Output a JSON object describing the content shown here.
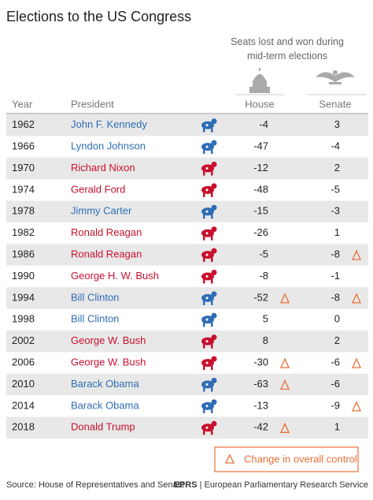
{
  "title": "Elections to the US Congress",
  "subtitle": "Seats lost and won during mid-term elections",
  "columns": {
    "year": "Year",
    "president": "President",
    "house": "House",
    "senate": "Senate"
  },
  "rows": [
    {
      "year": "1962",
      "president": "John F. Kennedy",
      "color": "#2f6db5",
      "house": -4,
      "senate": 3,
      "house_change": false,
      "senate_change": false
    },
    {
      "year": "1966",
      "president": "Lyndon Johnson",
      "color": "#2f6db5",
      "house": -47,
      "senate": -4,
      "house_change": false,
      "senate_change": false
    },
    {
      "year": "1970",
      "president": "Richard Nixon",
      "color": "#c8102e",
      "house": -12,
      "senate": 2,
      "house_change": false,
      "senate_change": false
    },
    {
      "year": "1974",
      "president": "Gerald Ford",
      "color": "#c8102e",
      "house": -48,
      "senate": -5,
      "house_change": false,
      "senate_change": false
    },
    {
      "year": "1978",
      "president": "Jimmy Carter",
      "color": "#2f6db5",
      "house": -15,
      "senate": -3,
      "house_change": false,
      "senate_change": false
    },
    {
      "year": "1982",
      "president": "Ronald Reagan",
      "color": "#c8102e",
      "house": -26,
      "senate": 1,
      "house_change": false,
      "senate_change": false
    },
    {
      "year": "1986",
      "president": "Ronald Reagan",
      "color": "#c8102e",
      "house": -5,
      "senate": -8,
      "house_change": false,
      "senate_change": true
    },
    {
      "year": "1990",
      "president": "George H. W. Bush",
      "color": "#c8102e",
      "house": -8,
      "senate": -1,
      "house_change": false,
      "senate_change": false
    },
    {
      "year": "1994",
      "president": "Bill Clinton",
      "color": "#2f6db5",
      "house": -52,
      "senate": -8,
      "house_change": true,
      "senate_change": true
    },
    {
      "year": "1998",
      "president": "Bill Clinton",
      "color": "#2f6db5",
      "house": 5,
      "senate": 0,
      "house_change": false,
      "senate_change": false
    },
    {
      "year": "2002",
      "president": "George W. Bush",
      "color": "#c8102e",
      "house": 8,
      "senate": 2,
      "house_change": false,
      "senate_change": false
    },
    {
      "year": "2006",
      "president": "George W. Bush",
      "color": "#c8102e",
      "house": -30,
      "senate": -6,
      "house_change": true,
      "senate_change": true
    },
    {
      "year": "2010",
      "president": "Barack Obama",
      "color": "#2f6db5",
      "house": -63,
      "senate": -6,
      "house_change": true,
      "senate_change": false
    },
    {
      "year": "2014",
      "president": "Barack Obama",
      "color": "#2f6db5",
      "house": -13,
      "senate": -9,
      "house_change": false,
      "senate_change": true
    },
    {
      "year": "2018",
      "president": "Donald Trump",
      "color": "#c8102e",
      "house": -42,
      "senate": 1,
      "house_change": true,
      "senate_change": false
    }
  ],
  "legend": "Change in overall control",
  "footer": {
    "source": "Source: House of Representatives and Senate.",
    "publisher": "EPRS",
    "publisher_name": "European Parliamentary Research Service"
  }
}
